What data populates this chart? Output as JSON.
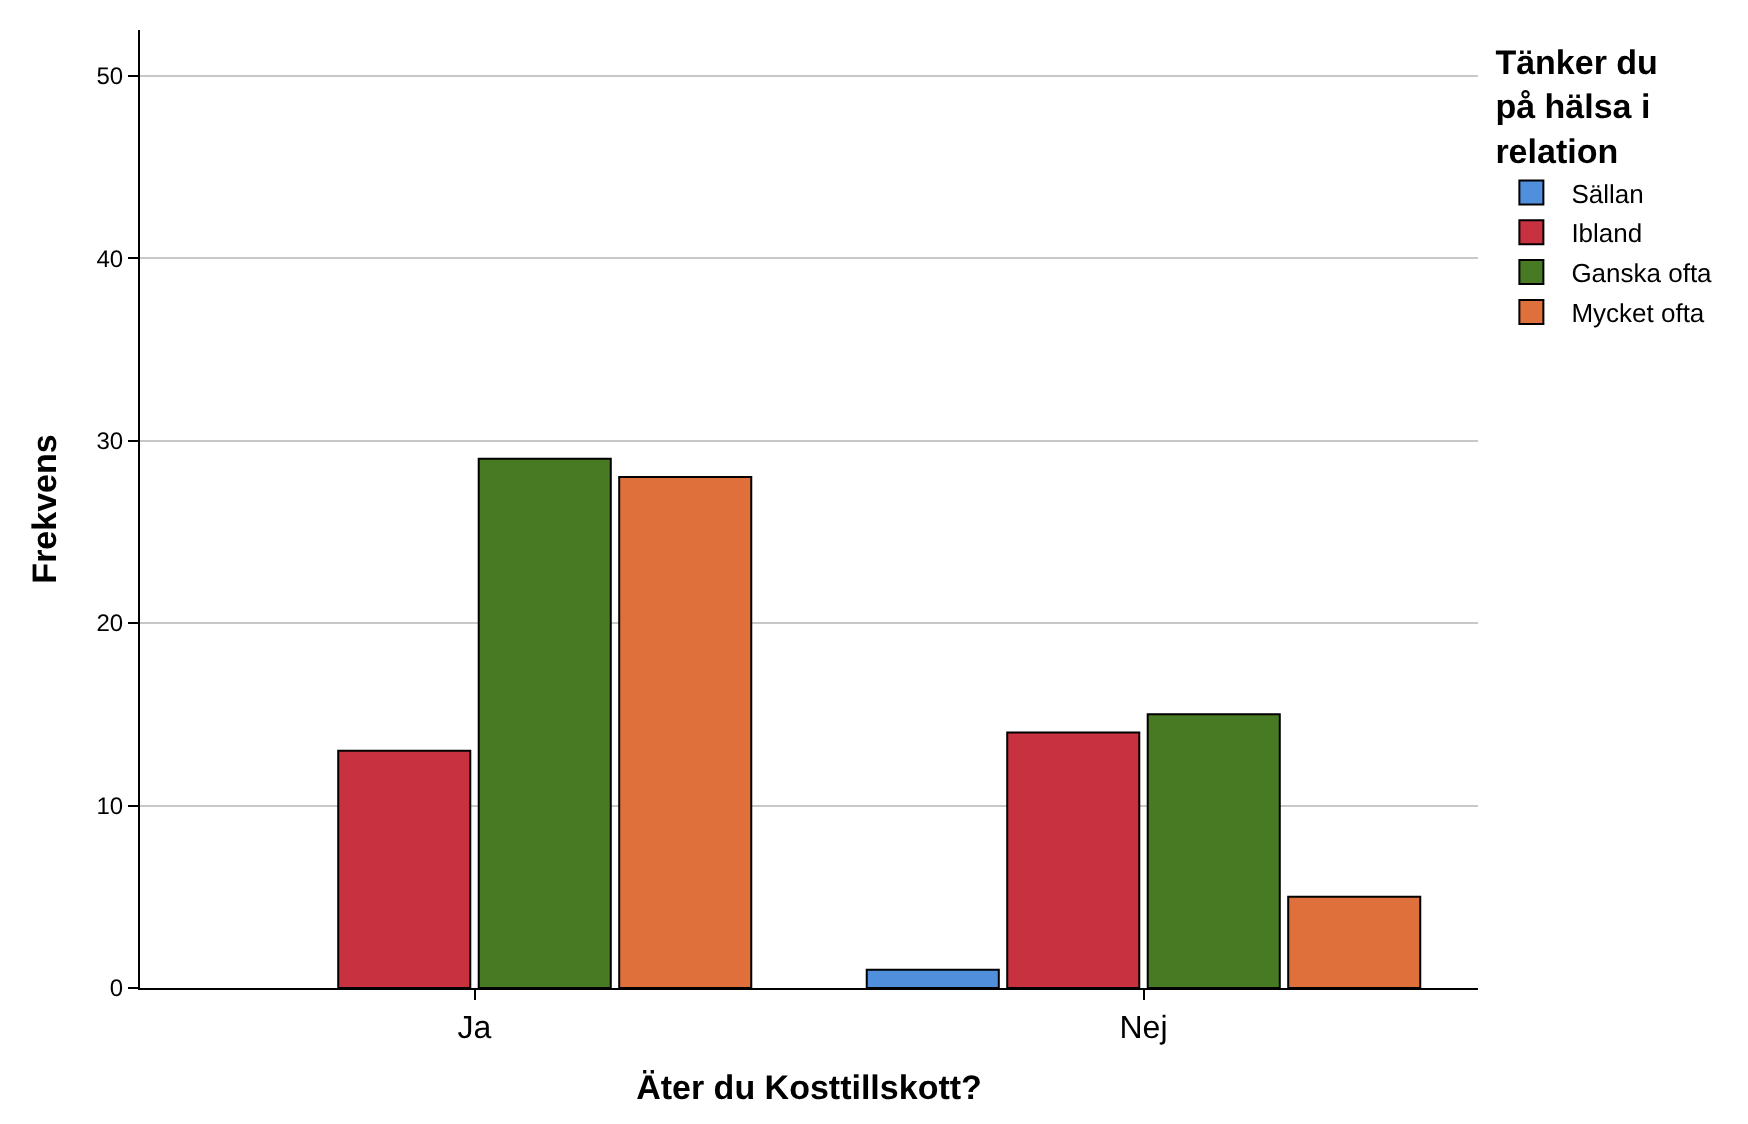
{
  "chart_data": {
    "type": "bar",
    "xlabel": "Äter du Kosttillskott?",
    "ylabel": "Frekvens",
    "legend_title": "Tänker du på hälsa i relation",
    "categories": [
      "Ja",
      "Nej"
    ],
    "series": [
      {
        "name": "Sällan",
        "color": "#4f8fdc",
        "values": [
          null,
          1
        ]
      },
      {
        "name": "Ibland",
        "color": "#c8313f",
        "values": [
          13,
          14
        ]
      },
      {
        "name": "Ganska ofta",
        "color": "#487a23",
        "values": [
          29,
          15
        ]
      },
      {
        "name": "Mycket ofta",
        "color": "#e0703b",
        "values": [
          28,
          5
        ]
      }
    ],
    "ylim": [
      0,
      52.5
    ],
    "yticks": [
      0,
      10,
      20,
      30,
      40,
      50
    ],
    "grid": "y",
    "legend": "top right"
  }
}
